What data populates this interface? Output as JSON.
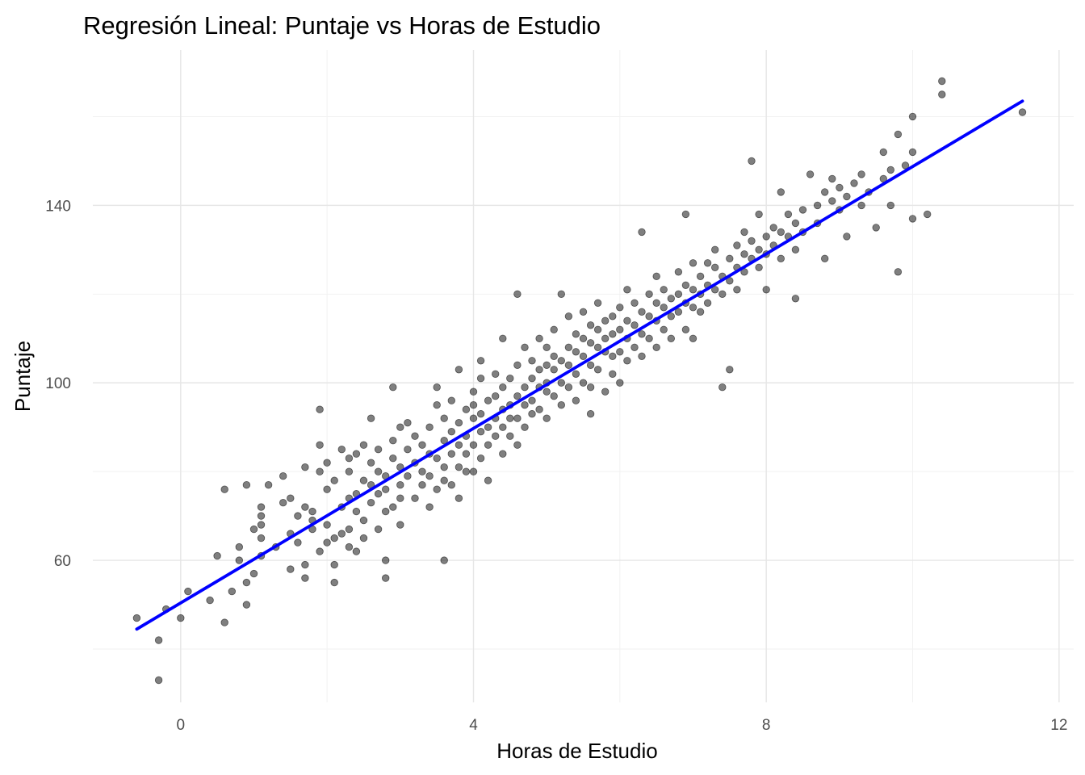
{
  "chart_data": {
    "type": "scatter",
    "title": "Regresión Lineal: Puntaje vs Horas de Estudio",
    "xlabel": "Horas de Estudio",
    "ylabel": "Puntaje",
    "xlim": [
      -1.2,
      12.2
    ],
    "ylim": [
      28,
      175
    ],
    "x_ticks": [
      0,
      4,
      8,
      12
    ],
    "x_tick_labels": [
      "0",
      "4",
      "8",
      "12"
    ],
    "y_ticks": [
      60,
      100,
      140
    ],
    "y_tick_labels": [
      "60",
      "100",
      "140"
    ],
    "x_minor_ticks": [
      2,
      6,
      10
    ],
    "y_minor_ticks": [
      40,
      80,
      120,
      160
    ],
    "grid": true,
    "legend": "none",
    "point_color": "#000000",
    "point_alpha": 0.5,
    "regression_line": {
      "color": "#0000ff",
      "x": [
        -0.6,
        11.5
      ],
      "y": [
        44.5,
        163.5
      ]
    },
    "points": [
      [
        -0.6,
        47
      ],
      [
        -0.3,
        42
      ],
      [
        -0.3,
        33
      ],
      [
        -0.2,
        49
      ],
      [
        0,
        47
      ],
      [
        0.1,
        53
      ],
      [
        0.4,
        51
      ],
      [
        0.5,
        61
      ],
      [
        0.6,
        76
      ],
      [
        0.6,
        46
      ],
      [
        0.7,
        53
      ],
      [
        0.8,
        63
      ],
      [
        0.8,
        60
      ],
      [
        0.9,
        55
      ],
      [
        0.9,
        50
      ],
      [
        0.9,
        77
      ],
      [
        1,
        57
      ],
      [
        1,
        67
      ],
      [
        1.1,
        61
      ],
      [
        1.1,
        68
      ],
      [
        1.1,
        72
      ],
      [
        1.1,
        70
      ],
      [
        1.1,
        65
      ],
      [
        1.2,
        77
      ],
      [
        1.3,
        63
      ],
      [
        1.4,
        79
      ],
      [
        1.4,
        73
      ],
      [
        1.5,
        74
      ],
      [
        1.5,
        58
      ],
      [
        1.5,
        66
      ],
      [
        1.6,
        70
      ],
      [
        1.6,
        64
      ],
      [
        1.7,
        81
      ],
      [
        1.7,
        72
      ],
      [
        1.7,
        59
      ],
      [
        1.7,
        56
      ],
      [
        1.8,
        69
      ],
      [
        1.8,
        71
      ],
      [
        1.8,
        67
      ],
      [
        1.9,
        94
      ],
      [
        1.9,
        86
      ],
      [
        1.9,
        80
      ],
      [
        1.9,
        62
      ],
      [
        2,
        64
      ],
      [
        2,
        82
      ],
      [
        2,
        68
      ],
      [
        2,
        76
      ],
      [
        2.1,
        65
      ],
      [
        2.1,
        55
      ],
      [
        2.1,
        59
      ],
      [
        2.1,
        78
      ],
      [
        2.2,
        72
      ],
      [
        2.2,
        66
      ],
      [
        2.2,
        85
      ],
      [
        2.3,
        67
      ],
      [
        2.3,
        63
      ],
      [
        2.3,
        80
      ],
      [
        2.3,
        74
      ],
      [
        2.3,
        83
      ],
      [
        2.4,
        71
      ],
      [
        2.4,
        62
      ],
      [
        2.4,
        75
      ],
      [
        2.4,
        84
      ],
      [
        2.5,
        78
      ],
      [
        2.5,
        69
      ],
      [
        2.5,
        65
      ],
      [
        2.5,
        86
      ],
      [
        2.6,
        77
      ],
      [
        2.6,
        82
      ],
      [
        2.6,
        73
      ],
      [
        2.6,
        92
      ],
      [
        2.7,
        80
      ],
      [
        2.7,
        67
      ],
      [
        2.7,
        75
      ],
      [
        2.7,
        85
      ],
      [
        2.8,
        79
      ],
      [
        2.8,
        71
      ],
      [
        2.8,
        60
      ],
      [
        2.8,
        56
      ],
      [
        2.8,
        76
      ],
      [
        2.9,
        83
      ],
      [
        2.9,
        87
      ],
      [
        2.9,
        72
      ],
      [
        2.9,
        99
      ],
      [
        3,
        77
      ],
      [
        3,
        81
      ],
      [
        3,
        90
      ],
      [
        3,
        68
      ],
      [
        3,
        74
      ],
      [
        3.1,
        79
      ],
      [
        3.1,
        85
      ],
      [
        3.1,
        91
      ],
      [
        3.2,
        74
      ],
      [
        3.2,
        82
      ],
      [
        3.2,
        88
      ],
      [
        3.3,
        80
      ],
      [
        3.3,
        77
      ],
      [
        3.3,
        86
      ],
      [
        3.4,
        72
      ],
      [
        3.4,
        84
      ],
      [
        3.4,
        90
      ],
      [
        3.4,
        79
      ],
      [
        3.5,
        83
      ],
      [
        3.5,
        95
      ],
      [
        3.5,
        76
      ],
      [
        3.5,
        99
      ],
      [
        3.6,
        87
      ],
      [
        3.6,
        81
      ],
      [
        3.6,
        78
      ],
      [
        3.6,
        92
      ],
      [
        3.6,
        60
      ],
      [
        3.7,
        84
      ],
      [
        3.7,
        89
      ],
      [
        3.7,
        77
      ],
      [
        3.7,
        96
      ],
      [
        3.8,
        91
      ],
      [
        3.8,
        81
      ],
      [
        3.8,
        86
      ],
      [
        3.8,
        74
      ],
      [
        3.8,
        103
      ],
      [
        3.9,
        88
      ],
      [
        3.9,
        94
      ],
      [
        3.9,
        80
      ],
      [
        3.9,
        84
      ],
      [
        4,
        92
      ],
      [
        4,
        98
      ],
      [
        4,
        86
      ],
      [
        4,
        80
      ],
      [
        4,
        95
      ],
      [
        4.1,
        89
      ],
      [
        4.1,
        93
      ],
      [
        4.1,
        83
      ],
      [
        4.1,
        101
      ],
      [
        4.1,
        105
      ],
      [
        4.2,
        90
      ],
      [
        4.2,
        96
      ],
      [
        4.2,
        86
      ],
      [
        4.2,
        78
      ],
      [
        4.3,
        97
      ],
      [
        4.3,
        92
      ],
      [
        4.3,
        88
      ],
      [
        4.3,
        102
      ],
      [
        4.4,
        94
      ],
      [
        4.4,
        90
      ],
      [
        4.4,
        99
      ],
      [
        4.4,
        84
      ],
      [
        4.4,
        110
      ],
      [
        4.5,
        95
      ],
      [
        4.5,
        101
      ],
      [
        4.5,
        88
      ],
      [
        4.5,
        92
      ],
      [
        4.6,
        97
      ],
      [
        4.6,
        104
      ],
      [
        4.6,
        92
      ],
      [
        4.6,
        86
      ],
      [
        4.6,
        120
      ],
      [
        4.7,
        99
      ],
      [
        4.7,
        95
      ],
      [
        4.7,
        108
      ],
      [
        4.7,
        90
      ],
      [
        4.8,
        101
      ],
      [
        4.8,
        96
      ],
      [
        4.8,
        105
      ],
      [
        4.8,
        93
      ],
      [
        4.9,
        99
      ],
      [
        4.9,
        103
      ],
      [
        4.9,
        110
      ],
      [
        4.9,
        94
      ],
      [
        5,
        104
      ],
      [
        5,
        98
      ],
      [
        5,
        108
      ],
      [
        5,
        92
      ],
      [
        5,
        100
      ],
      [
        5.1,
        103
      ],
      [
        5.1,
        97
      ],
      [
        5.1,
        112
      ],
      [
        5.1,
        106
      ],
      [
        5.2,
        100
      ],
      [
        5.2,
        105
      ],
      [
        5.2,
        95
      ],
      [
        5.2,
        120
      ],
      [
        5.3,
        104
      ],
      [
        5.3,
        108
      ],
      [
        5.3,
        99
      ],
      [
        5.3,
        115
      ],
      [
        5.4,
        102
      ],
      [
        5.4,
        107
      ],
      [
        5.4,
        111
      ],
      [
        5.4,
        96
      ],
      [
        5.5,
        106
      ],
      [
        5.5,
        110
      ],
      [
        5.5,
        100
      ],
      [
        5.5,
        116
      ],
      [
        5.6,
        104
      ],
      [
        5.6,
        109
      ],
      [
        5.6,
        99
      ],
      [
        5.6,
        113
      ],
      [
        5.6,
        93
      ],
      [
        5.7,
        108
      ],
      [
        5.7,
        112
      ],
      [
        5.7,
        103
      ],
      [
        5.7,
        118
      ],
      [
        5.8,
        107
      ],
      [
        5.8,
        110
      ],
      [
        5.8,
        98
      ],
      [
        5.8,
        114
      ],
      [
        5.9,
        111
      ],
      [
        5.9,
        106
      ],
      [
        5.9,
        115
      ],
      [
        5.9,
        102
      ],
      [
        6,
        112
      ],
      [
        6,
        107
      ],
      [
        6,
        117
      ],
      [
        6,
        100
      ],
      [
        6.1,
        110
      ],
      [
        6.1,
        114
      ],
      [
        6.1,
        105
      ],
      [
        6.1,
        121
      ],
      [
        6.2,
        113
      ],
      [
        6.2,
        108
      ],
      [
        6.2,
        118
      ],
      [
        6.3,
        111
      ],
      [
        6.3,
        116
      ],
      [
        6.3,
        106
      ],
      [
        6.3,
        134
      ],
      [
        6.4,
        115
      ],
      [
        6.4,
        120
      ],
      [
        6.4,
        110
      ],
      [
        6.5,
        114
      ],
      [
        6.5,
        118
      ],
      [
        6.5,
        108
      ],
      [
        6.5,
        124
      ],
      [
        6.6,
        117
      ],
      [
        6.6,
        112
      ],
      [
        6.6,
        121
      ],
      [
        6.7,
        115
      ],
      [
        6.7,
        119
      ],
      [
        6.7,
        110
      ],
      [
        6.8,
        120
      ],
      [
        6.8,
        116
      ],
      [
        6.8,
        125
      ],
      [
        6.9,
        118
      ],
      [
        6.9,
        122
      ],
      [
        6.9,
        112
      ],
      [
        6.9,
        138
      ],
      [
        7,
        121
      ],
      [
        7,
        117
      ],
      [
        7,
        127
      ],
      [
        7,
        110
      ],
      [
        7.1,
        120
      ],
      [
        7.1,
        124
      ],
      [
        7.1,
        116
      ],
      [
        7.2,
        122
      ],
      [
        7.2,
        127
      ],
      [
        7.2,
        118
      ],
      [
        7.3,
        126
      ],
      [
        7.3,
        121
      ],
      [
        7.3,
        130
      ],
      [
        7.4,
        124
      ],
      [
        7.4,
        120
      ],
      [
        7.4,
        99
      ],
      [
        7.5,
        128
      ],
      [
        7.5,
        123
      ],
      [
        7.5,
        103
      ],
      [
        7.6,
        126
      ],
      [
        7.6,
        131
      ],
      [
        7.6,
        121
      ],
      [
        7.7,
        129
      ],
      [
        7.7,
        125
      ],
      [
        7.7,
        134
      ],
      [
        7.8,
        128
      ],
      [
        7.8,
        132
      ],
      [
        7.8,
        150
      ],
      [
        7.9,
        130
      ],
      [
        7.9,
        126
      ],
      [
        7.9,
        138
      ],
      [
        8,
        133
      ],
      [
        8,
        129
      ],
      [
        8,
        121
      ],
      [
        8.1,
        131
      ],
      [
        8.1,
        135
      ],
      [
        8.2,
        134
      ],
      [
        8.2,
        128
      ],
      [
        8.2,
        143
      ],
      [
        8.3,
        133
      ],
      [
        8.3,
        138
      ],
      [
        8.4,
        136
      ],
      [
        8.4,
        130
      ],
      [
        8.4,
        119
      ],
      [
        8.5,
        139
      ],
      [
        8.5,
        134
      ],
      [
        8.6,
        147
      ],
      [
        8.7,
        140
      ],
      [
        8.7,
        136
      ],
      [
        8.8,
        143
      ],
      [
        8.8,
        128
      ],
      [
        8.9,
        141
      ],
      [
        8.9,
        146
      ],
      [
        9,
        139
      ],
      [
        9,
        144
      ],
      [
        9.1,
        142
      ],
      [
        9.1,
        133
      ],
      [
        9.2,
        145
      ],
      [
        9.3,
        140
      ],
      [
        9.3,
        147
      ],
      [
        9.4,
        143
      ],
      [
        9.5,
        135
      ],
      [
        9.6,
        146
      ],
      [
        9.6,
        152
      ],
      [
        9.7,
        140
      ],
      [
        9.7,
        148
      ],
      [
        9.8,
        156
      ],
      [
        9.8,
        125
      ],
      [
        9.9,
        149
      ],
      [
        10,
        137
      ],
      [
        10,
        152
      ],
      [
        10,
        160
      ],
      [
        10.2,
        138
      ],
      [
        10.4,
        165
      ],
      [
        10.4,
        168
      ],
      [
        11.5,
        161
      ]
    ]
  }
}
